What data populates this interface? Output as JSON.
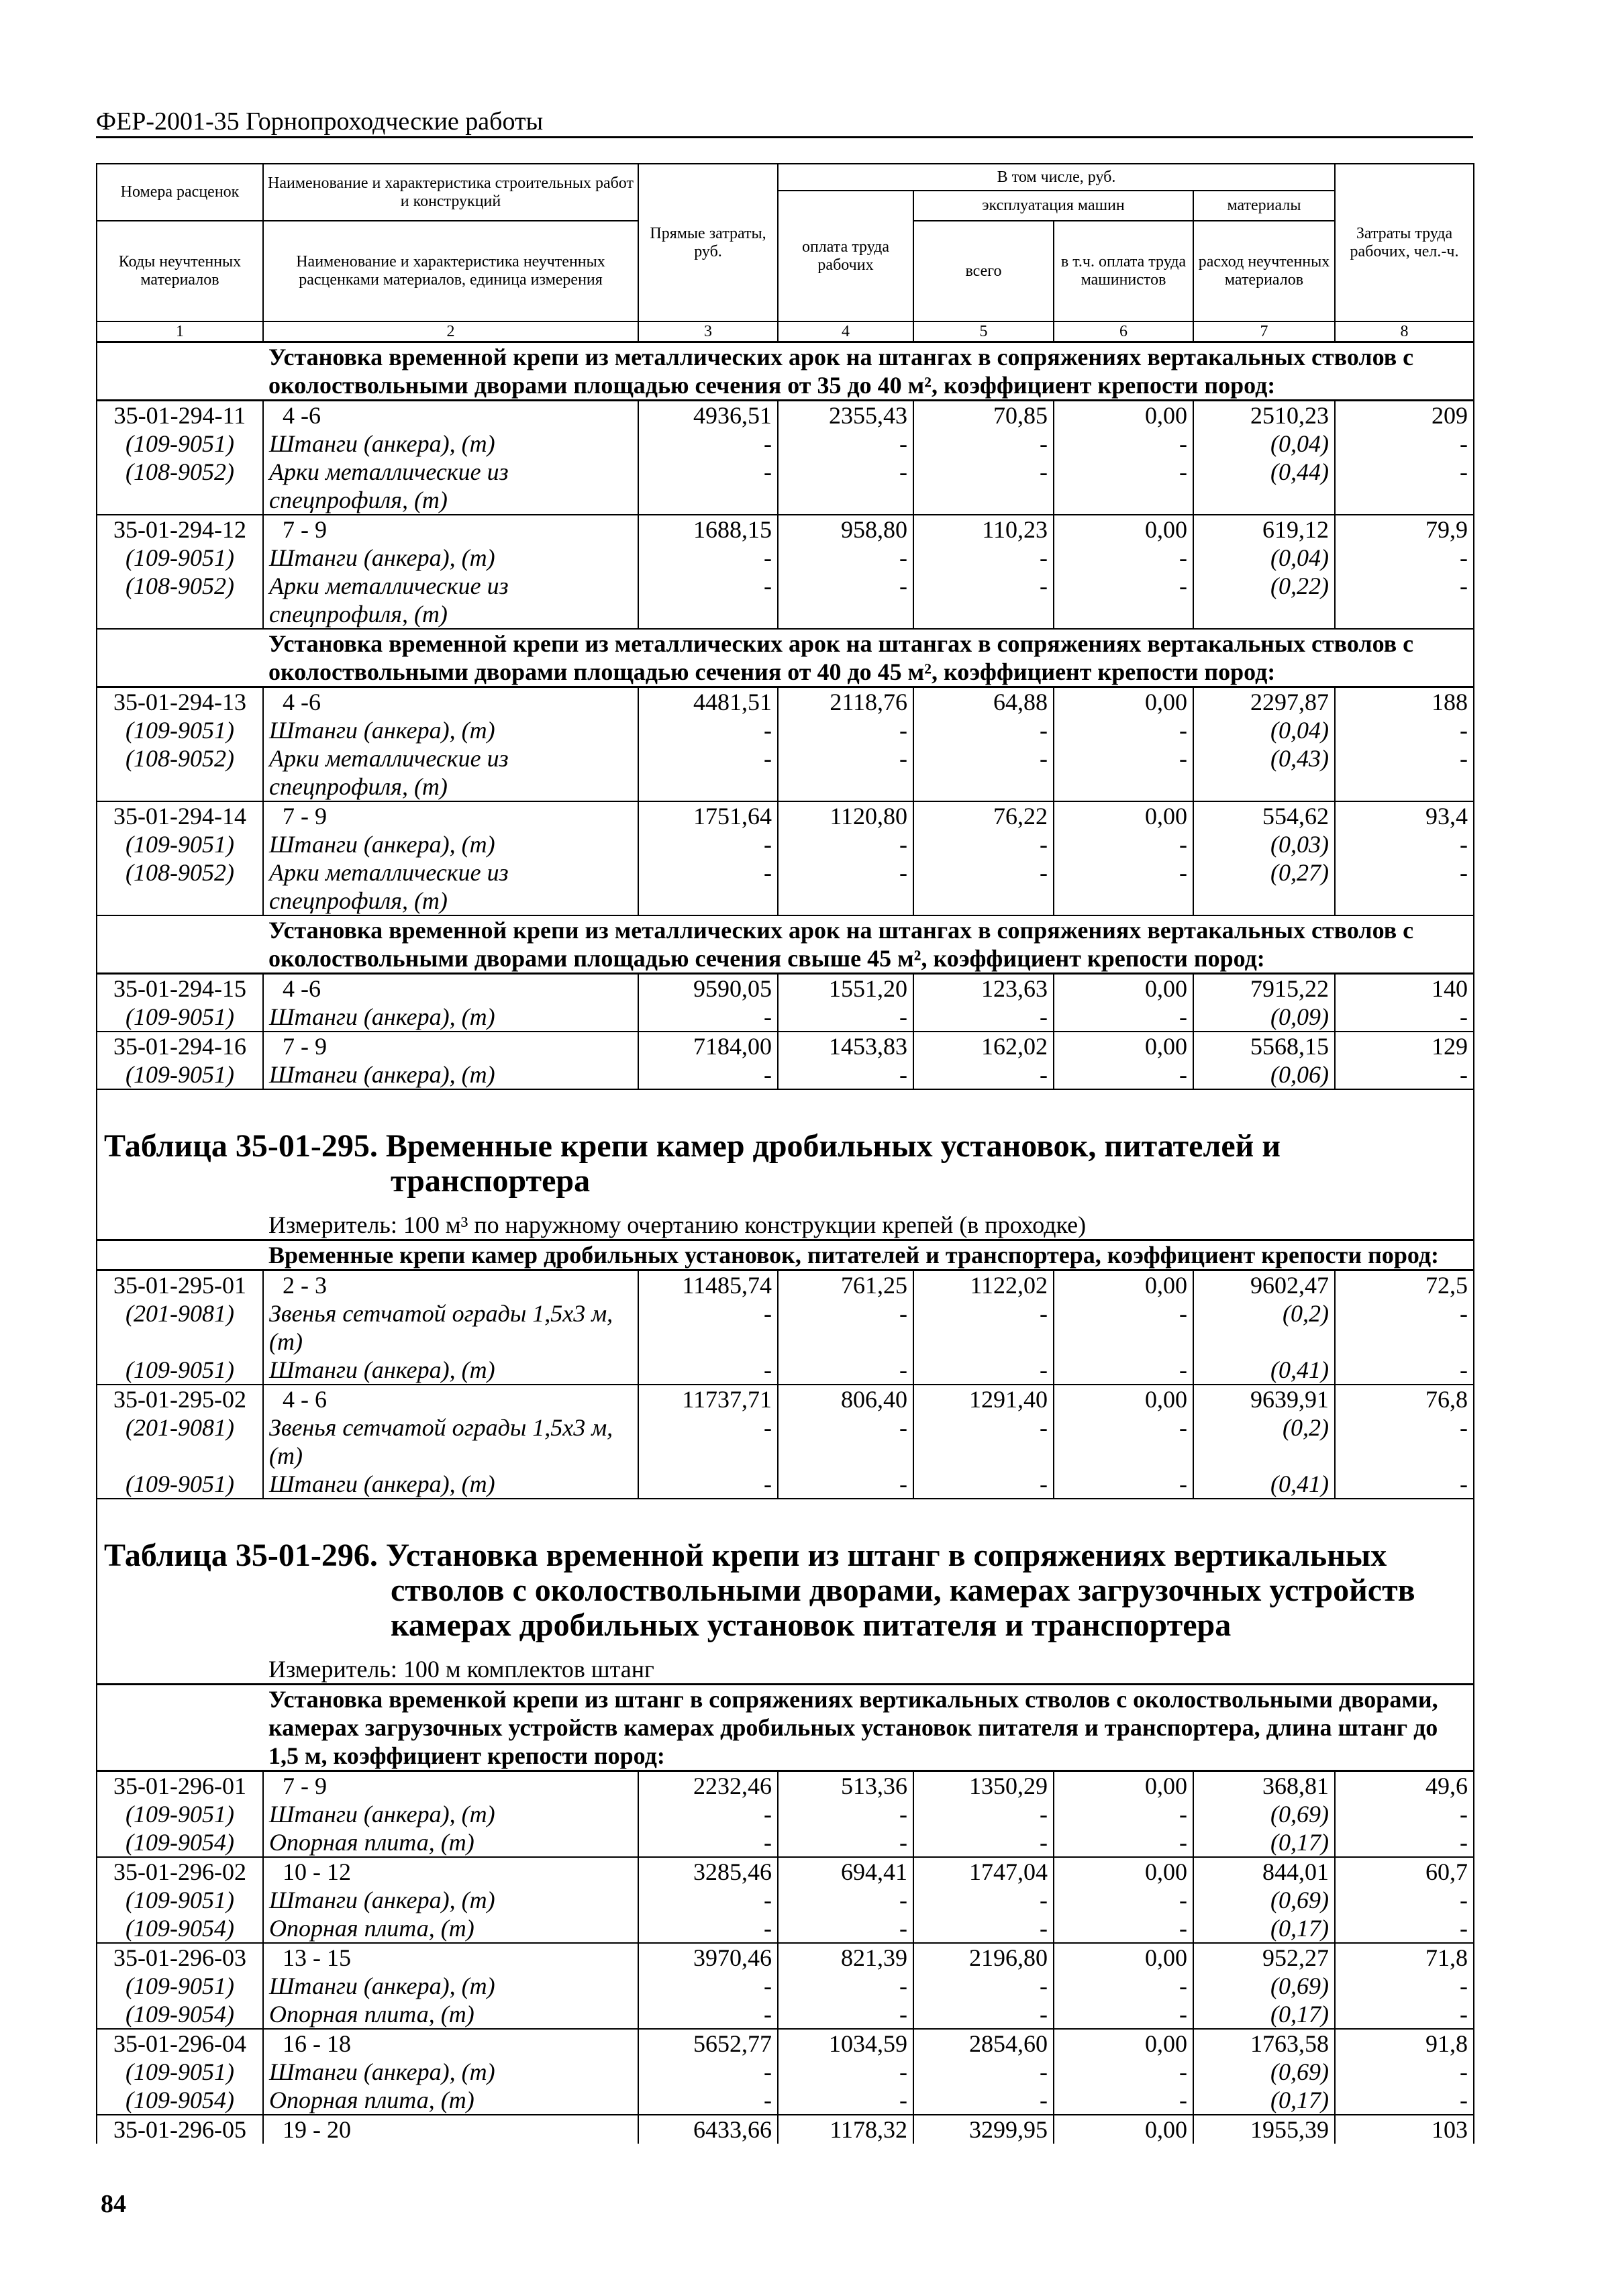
{
  "page": {
    "running_title": "ФЕР-2001-35 Горнопроходческие работы",
    "page_number": "84"
  },
  "header": {
    "c1_top": "Номера расценок",
    "c2_top": "Наименование и характеристика строительных работ и конструкций",
    "c3": "Прямые затраты, руб.",
    "incl": "В том числе, руб.",
    "c4": "оплата труда рабочих",
    "machines": "эксплуатация машин",
    "materials": "материалы",
    "c8": "Затраты труда рабочих, чел.-ч.",
    "c1_bottom": "Коды неучтенных материалов",
    "c2_bottom": "Наименование и характеристика неучтенных расценками материалов, единица измерения",
    "c5": "всего",
    "c6": "в т.ч. оплата труда машинистов",
    "c7": "расход неучтенных материалов",
    "nums": [
      "1",
      "2",
      "3",
      "4",
      "5",
      "6",
      "7",
      "8"
    ]
  },
  "body": [
    {
      "type": "group",
      "text": "Установка временной крепи из металлических арок на штангах в сопряжениях вертакальных стволов с\nоколоствольными дворами площадью сечения от 35 до 40 м², коэффициент крепости пород:"
    },
    {
      "type": "rate",
      "lines": [
        [
          "35-01-294-11",
          "4 -6",
          "4936,51",
          "2355,43",
          "70,85",
          "0,00",
          "2510,23",
          "209"
        ],
        [
          "(109-9051)",
          "Штанги (анкера), (т)",
          "-",
          "-",
          "-",
          "-",
          "(0,04)",
          "-"
        ],
        [
          "(108-9052)",
          "Арки металлические из\nспецпрофиля, (т)",
          "-",
          "-",
          "-",
          "-",
          "(0,44)",
          "-"
        ]
      ]
    },
    {
      "type": "rate",
      "lines": [
        [
          "35-01-294-12",
          "7 - 9",
          "1688,15",
          "958,80",
          "110,23",
          "0,00",
          "619,12",
          "79,9"
        ],
        [
          "(109-9051)",
          "Штанги (анкера), (т)",
          "-",
          "-",
          "-",
          "-",
          "(0,04)",
          "-"
        ],
        [
          "(108-9052)",
          "Арки металлические из\nспецпрофиля, (т)",
          "-",
          "-",
          "-",
          "-",
          "(0,22)",
          "-"
        ]
      ]
    },
    {
      "type": "group",
      "text": "Установка временной крепи из металлических арок на штангах в сопряжениях вертакальных стволов с\nоколоствольными дворами площадью сечения от 40 до 45 м², коэффициент крепости пород:"
    },
    {
      "type": "rate",
      "lines": [
        [
          "35-01-294-13",
          "4 -6",
          "4481,51",
          "2118,76",
          "64,88",
          "0,00",
          "2297,87",
          "188"
        ],
        [
          "(109-9051)",
          "Штанги (анкера), (т)",
          "-",
          "-",
          "-",
          "-",
          "(0,04)",
          "-"
        ],
        [
          "(108-9052)",
          "Арки металлические из\nспецпрофиля, (т)",
          "-",
          "-",
          "-",
          "-",
          "(0,43)",
          "-"
        ]
      ]
    },
    {
      "type": "rate",
      "lines": [
        [
          "35-01-294-14",
          "7 - 9",
          "1751,64",
          "1120,80",
          "76,22",
          "0,00",
          "554,62",
          "93,4"
        ],
        [
          "(109-9051)",
          "Штанги (анкера), (т)",
          "-",
          "-",
          "-",
          "-",
          "(0,03)",
          "-"
        ],
        [
          "(108-9052)",
          "Арки металлические из\nспецпрофиля, (т)",
          "-",
          "-",
          "-",
          "-",
          "(0,27)",
          "-"
        ]
      ]
    },
    {
      "type": "group",
      "text": "Установка временной крепи из металлических арок на штангах в сопряжениях вертакальных стволов с\nоколоствольными дворами площадью сечения свыше 45 м², коэффициент крепости пород:"
    },
    {
      "type": "rate",
      "lines": [
        [
          "35-01-294-15",
          "4 -6",
          "9590,05",
          "1551,20",
          "123,63",
          "0,00",
          "7915,22",
          "140"
        ],
        [
          "(109-9051)",
          "Штанги (анкера), (т)",
          "-",
          "-",
          "-",
          "-",
          "(0,09)",
          "-"
        ]
      ]
    },
    {
      "type": "rate",
      "lines": [
        [
          "35-01-294-16",
          "7 - 9",
          "7184,00",
          "1453,83",
          "162,02",
          "0,00",
          "5568,15",
          "129"
        ],
        [
          "(109-9051)",
          "Штанги (анкера), (т)",
          "-",
          "-",
          "-",
          "-",
          "(0,06)",
          "-"
        ]
      ]
    },
    {
      "type": "title",
      "text": "Таблица 35-01-295. Временные крепи камер дробильных установок, питателей и\nтранспортера",
      "measure": "Измеритель: 100 м³ по наружному очертанию конструкции крепей (в проходке)"
    },
    {
      "type": "group",
      "text": "Временные крепи камер дробильных установок, питателей и транспортера, коэффициент крепости пород:"
    },
    {
      "type": "rate",
      "lines": [
        [
          "35-01-295-01",
          "2 - 3",
          "11485,74",
          "761,25",
          "1122,02",
          "0,00",
          "9602,47",
          "72,5"
        ],
        [
          "(201-9081)",
          "Звенья сетчатой ограды 1,5х3 м,\n(т)",
          "-",
          "-",
          "-",
          "-",
          "(0,2)",
          "-"
        ],
        [
          "(109-9051)",
          "Штанги (анкера), (т)",
          "-",
          "-",
          "-",
          "-",
          "(0,41)",
          "-"
        ]
      ]
    },
    {
      "type": "rate",
      "lines": [
        [
          "35-01-295-02",
          "4 - 6",
          "11737,71",
          "806,40",
          "1291,40",
          "0,00",
          "9639,91",
          "76,8"
        ],
        [
          "(201-9081)",
          "Звенья сетчатой ограды 1,5х3 м,\n(т)",
          "-",
          "-",
          "-",
          "-",
          "(0,2)",
          "-"
        ],
        [
          "(109-9051)",
          "Штанги (анкера), (т)",
          "-",
          "-",
          "-",
          "-",
          "(0,41)",
          "-"
        ]
      ]
    },
    {
      "type": "title",
      "text": "Таблица 35-01-296. Установка временной крепи из штанг в сопряжениях вертикальных\nстволов с околоствольными дворами, камерах загрузочных устройств\nкамерах дробильных установок питателя и транспортера",
      "measure": "Измеритель: 100 м комплектов штанг"
    },
    {
      "type": "group",
      "text": "Установка временкой крепи из штанг в сопряжениях вертикальных стволов с околоствольными дворами,\nкамерах загрузочных устройств камерах дробильных установок питателя и транспортера, длина штанг до\n1,5 м, коэффициент крепости пород:"
    },
    {
      "type": "rate",
      "lines": [
        [
          "35-01-296-01",
          "7 - 9",
          "2232,46",
          "513,36",
          "1350,29",
          "0,00",
          "368,81",
          "49,6"
        ],
        [
          "(109-9051)",
          "Штанги (анкера), (т)",
          "-",
          "-",
          "-",
          "-",
          "(0,69)",
          "-"
        ],
        [
          "(109-9054)",
          "Опорная плита, (т)",
          "-",
          "-",
          "-",
          "-",
          "(0,17)",
          "-"
        ]
      ]
    },
    {
      "type": "rate",
      "lines": [
        [
          "35-01-296-02",
          "10 - 12",
          "3285,46",
          "694,41",
          "1747,04",
          "0,00",
          "844,01",
          "60,7"
        ],
        [
          "(109-9051)",
          "Штанги (анкера), (т)",
          "-",
          "-",
          "-",
          "-",
          "(0,69)",
          "-"
        ],
        [
          "(109-9054)",
          "Опорная плита, (т)",
          "-",
          "-",
          "-",
          "-",
          "(0,17)",
          "-"
        ]
      ]
    },
    {
      "type": "rate",
      "lines": [
        [
          "35-01-296-03",
          "13 - 15",
          "3970,46",
          "821,39",
          "2196,80",
          "0,00",
          "952,27",
          "71,8"
        ],
        [
          "(109-9051)",
          "Штанги (анкера), (т)",
          "-",
          "-",
          "-",
          "-",
          "(0,69)",
          "-"
        ],
        [
          "(109-9054)",
          "Опорная плита, (т)",
          "-",
          "-",
          "-",
          "-",
          "(0,17)",
          "-"
        ]
      ]
    },
    {
      "type": "rate",
      "lines": [
        [
          "35-01-296-04",
          "16 - 18",
          "5652,77",
          "1034,59",
          "2854,60",
          "0,00",
          "1763,58",
          "91,8"
        ],
        [
          "(109-9051)",
          "Штанги (анкера), (т)",
          "-",
          "-",
          "-",
          "-",
          "(0,69)",
          "-"
        ],
        [
          "(109-9054)",
          "Опорная плита, (т)",
          "-",
          "-",
          "-",
          "-",
          "(0,17)",
          "-"
        ]
      ]
    },
    {
      "type": "rate",
      "open": true,
      "lines": [
        [
          "35-01-296-05",
          "19 - 20",
          "6433,66",
          "1178,32",
          "3299,95",
          "0,00",
          "1955,39",
          "103"
        ]
      ]
    }
  ]
}
